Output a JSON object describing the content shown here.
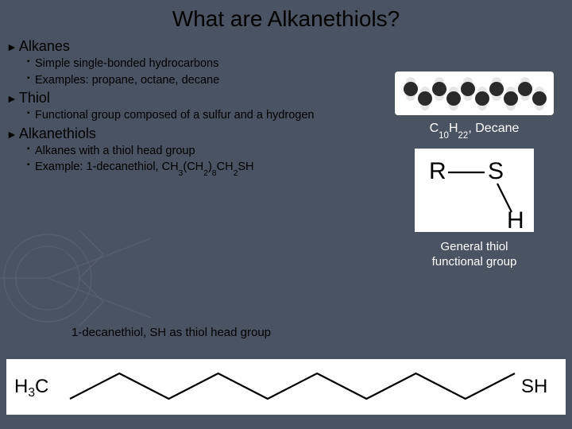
{
  "title": "What are Alkanethiols?",
  "sections": [
    {
      "header": "Alkanes",
      "bullets": [
        "Simple single-bonded hydrocarbons",
        "Examples: propane, octane, decane"
      ]
    },
    {
      "header": "Thiol",
      "bullets": [
        "Functional group composed of a sulfur and a hydrogen"
      ]
    },
    {
      "header": "Alkanethiols",
      "bullets": [
        "Alkanes with a thiol head group",
        "Example: 1-decanethiol, CH₃(CH₂)₈CH₂SH"
      ]
    }
  ],
  "decane": {
    "formula_html": "C<sub>10</sub>H<sub>22</sub>, Decane",
    "model_colors": {
      "carbon": "#2a2a2a",
      "hydrogen": "#e6e6e6"
    }
  },
  "thiol_structure": {
    "R": "R",
    "S": "S",
    "H": "H",
    "line_color": "#000000",
    "font_size": 30
  },
  "thiol_caption_line1": "General thiol",
  "thiol_caption_line2": "functional group",
  "left_caption": "1-decanethiol, SH as thiol head group",
  "bottom_structure": {
    "left_label": "H₃C",
    "right_label": "SH",
    "n_vertices": 10,
    "line_width": 2.2,
    "font_size": 24,
    "color": "#000000"
  },
  "colors": {
    "background": "#4a5361",
    "title": "#000000",
    "body_text": "#000000",
    "caption_text": "#ffffff"
  }
}
